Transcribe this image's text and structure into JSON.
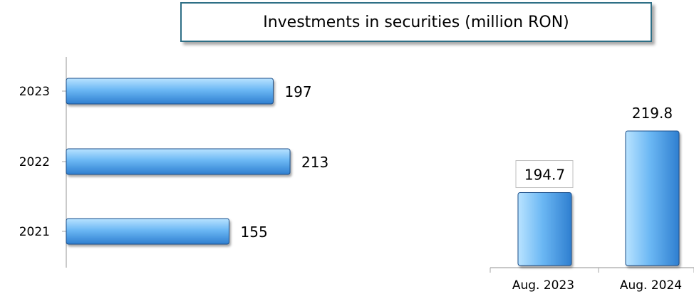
{
  "title": "Investments in securities (million RON)",
  "colors": {
    "bar_light": "#b9e3ff",
    "bar_mid": "#6cb8f4",
    "bar_dark": "#2f7fd0",
    "bar_edge": "#1b4f8a",
    "axis": "#a6a6a6",
    "title_border": "#2e6f86"
  },
  "chart_data": [
    {
      "type": "bar",
      "orientation": "horizontal",
      "categories": [
        "2023",
        "2022",
        "2021"
      ],
      "values": [
        197,
        213,
        155
      ],
      "data_labels": [
        "197",
        "213",
        "155"
      ],
      "xlim": [
        0,
        215
      ],
      "grid": false,
      "legend": "none"
    },
    {
      "type": "bar",
      "orientation": "vertical",
      "categories": [
        "Aug. 2023",
        "Aug. 2024"
      ],
      "values": [
        194.7,
        219.8
      ],
      "data_labels": [
        "194.7",
        "219.8"
      ],
      "ylim": [
        165,
        225
      ],
      "grid": false,
      "legend": "none"
    }
  ]
}
